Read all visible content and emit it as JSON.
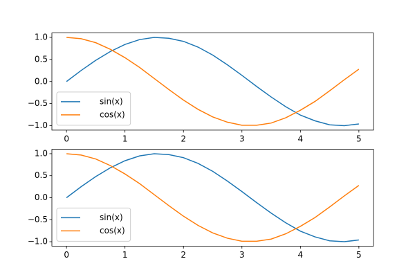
{
  "chart_data": [
    {
      "type": "line",
      "x": [
        0,
        0.25,
        0.5,
        0.75,
        1,
        1.25,
        1.5,
        1.75,
        2,
        2.25,
        2.5,
        2.75,
        3,
        3.25,
        3.5,
        3.75,
        4,
        4.25,
        4.5,
        4.75,
        5
      ],
      "series": [
        {
          "name": "sin(x)",
          "color": "#1f77b4",
          "values": [
            0,
            0.25,
            0.48,
            0.68,
            0.84,
            0.95,
            1.0,
            0.98,
            0.91,
            0.78,
            0.6,
            0.38,
            0.14,
            -0.11,
            -0.35,
            -0.57,
            -0.76,
            -0.89,
            -0.98,
            -1.0,
            -0.96
          ]
        },
        {
          "name": "cos(x)",
          "color": "#ff7f0e",
          "values": [
            1,
            0.97,
            0.88,
            0.73,
            0.54,
            0.32,
            0.07,
            -0.18,
            -0.42,
            -0.63,
            -0.8,
            -0.92,
            -0.99,
            -0.99,
            -0.94,
            -0.82,
            -0.65,
            -0.45,
            -0.21,
            0.04,
            0.28
          ]
        }
      ],
      "xlim": [
        -0.25,
        5.25
      ],
      "xticks": [
        0,
        1,
        2,
        3,
        4,
        5
      ],
      "ylim": [
        -1.1,
        1.1
      ],
      "yticks": [
        {
          "value": -1,
          "label": "−1.0"
        },
        {
          "value": -0.5,
          "label": "−0.5"
        },
        {
          "value": 0,
          "label": "0.0"
        },
        {
          "value": 0.5,
          "label": "0.5"
        },
        {
          "value": 1,
          "label": "1.0"
        }
      ],
      "legend": "lower left"
    },
    {
      "type": "line",
      "x": [
        0,
        0.25,
        0.5,
        0.75,
        1,
        1.25,
        1.5,
        1.75,
        2,
        2.25,
        2.5,
        2.75,
        3,
        3.25,
        3.5,
        3.75,
        4,
        4.25,
        4.5,
        4.75,
        5
      ],
      "series": [
        {
          "name": "sin(x)",
          "color": "#1f77b4",
          "values": [
            0,
            0.25,
            0.48,
            0.68,
            0.84,
            0.95,
            1.0,
            0.98,
            0.91,
            0.78,
            0.6,
            0.38,
            0.14,
            -0.11,
            -0.35,
            -0.57,
            -0.76,
            -0.89,
            -0.98,
            -1.0,
            -0.96
          ]
        },
        {
          "name": "cos(x)",
          "color": "#ff7f0e",
          "values": [
            1,
            0.97,
            0.88,
            0.73,
            0.54,
            0.32,
            0.07,
            -0.18,
            -0.42,
            -0.63,
            -0.8,
            -0.92,
            -0.99,
            -0.99,
            -0.94,
            -0.82,
            -0.65,
            -0.45,
            -0.21,
            0.04,
            0.28
          ]
        }
      ],
      "xlim": [
        -0.25,
        5.25
      ],
      "xticks": [
        0,
        1,
        2,
        3,
        4,
        5
      ],
      "ylim": [
        -1.1,
        1.1
      ],
      "yticks": [
        {
          "value": -1,
          "label": "−1.0"
        },
        {
          "value": -0.5,
          "label": "−0.5"
        },
        {
          "value": 0,
          "label": "0.0"
        },
        {
          "value": 0.5,
          "label": "0.5"
        },
        {
          "value": 1,
          "label": "1.0"
        }
      ],
      "legend": "lower left"
    }
  ]
}
